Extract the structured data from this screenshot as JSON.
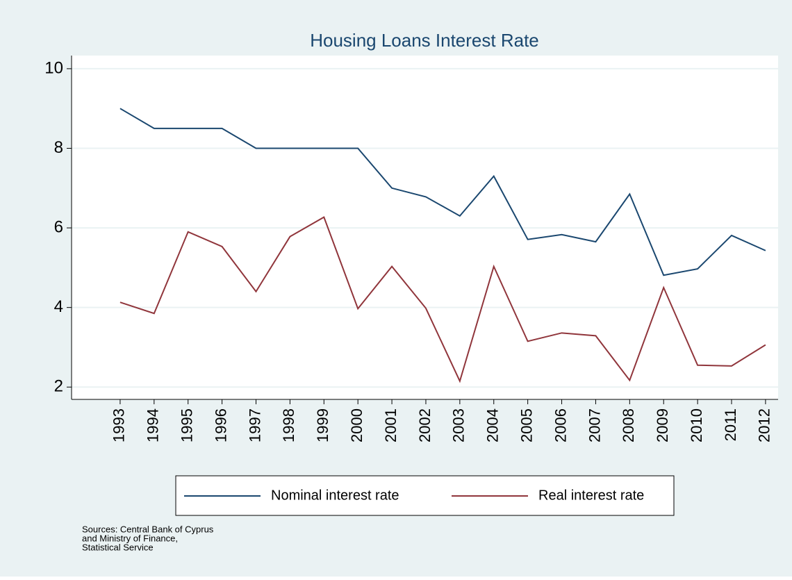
{
  "chart_data": {
    "type": "line",
    "title": "Housing Loans Interest Rate",
    "x": [
      1993,
      1994,
      1995,
      1996,
      1997,
      1998,
      1999,
      2000,
      2001,
      2002,
      2003,
      2004,
      2005,
      2006,
      2007,
      2008,
      2009,
      2010,
      2011,
      2012
    ],
    "xlim": [
      1991.57,
      2012.37
    ],
    "xticks": [
      1993,
      1994,
      1995,
      1996,
      1997,
      1998,
      1999,
      2000,
      2001,
      2002,
      2003,
      2004,
      2005,
      2006,
      2007,
      2008,
      2009,
      2010,
      2011,
      2012
    ],
    "ylim": [
      1.69,
      10.33
    ],
    "yticks": [
      2,
      4,
      6,
      8,
      10
    ],
    "grid": true,
    "series": [
      {
        "name": "Nominal interest rate",
        "color": "#1a476f",
        "values": [
          9,
          8.5,
          8.5,
          8.5,
          8,
          8,
          8,
          8,
          7,
          6.78,
          6.3,
          7.3,
          5.71,
          5.83,
          5.65,
          6.85,
          4.81,
          4.97,
          5.81,
          5.43
        ]
      },
      {
        "name": "Real interest rate",
        "color": "#90353b",
        "values": [
          4.13,
          3.85,
          5.9,
          5.53,
          4.4,
          5.78,
          6.27,
          3.97,
          5.03,
          3.98,
          2.15,
          5.03,
          3.15,
          3.36,
          3.29,
          2.17,
          4.5,
          2.55,
          2.53,
          3.06
        ]
      }
    ],
    "note": [
      "Sources: Central Bank of Cyprus",
      "and Ministry of Finance,",
      "Statistical Service"
    ]
  }
}
